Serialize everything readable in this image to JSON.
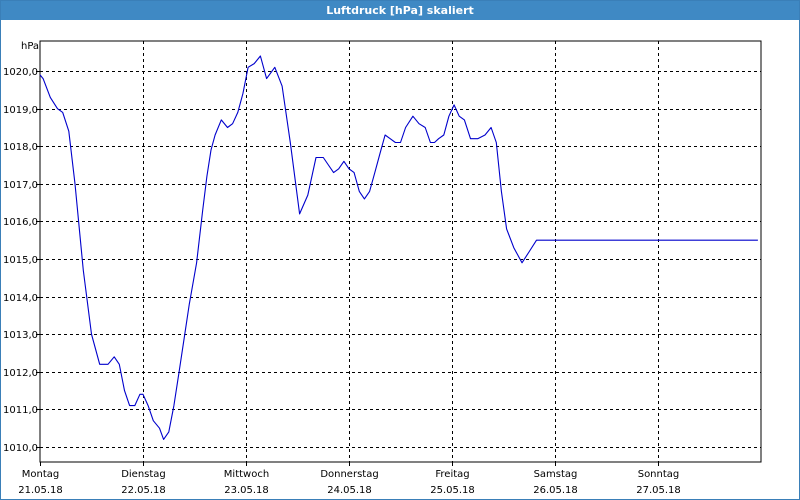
{
  "window": {
    "title": "Luftdruck [hPa] skaliert"
  },
  "chart_data": {
    "type": "line",
    "title": "Luftdruck [hPa] skaliert",
    "ylabel": "hPa",
    "ylim": [
      1009.6,
      1020.8
    ],
    "yticks": [
      1010.0,
      1011.0,
      1012.0,
      1013.0,
      1014.0,
      1015.0,
      1016.0,
      1017.0,
      1018.0,
      1019.0,
      1020.0
    ],
    "ytick_labels": [
      "1010,0",
      "1011,0",
      "1012,0",
      "1013,0",
      "1014,0",
      "1015,0",
      "1016,0",
      "1017,0",
      "1018,0",
      "1019,0",
      "1020,0"
    ],
    "xlim": [
      0,
      7
    ],
    "x_ticks": [
      {
        "day": "Montag",
        "date": "21.05.18"
      },
      {
        "day": "Dienstag",
        "date": "22.05.18"
      },
      {
        "day": "Mittwoch",
        "date": "23.05.18"
      },
      {
        "day": "Donnerstag",
        "date": "24.05.18"
      },
      {
        "day": "Freitag",
        "date": "25.05.18"
      },
      {
        "day": "Samstag",
        "date": "26.05.18"
      },
      {
        "day": "Sonntag",
        "date": "27.05.18"
      }
    ],
    "grid": true,
    "series": [
      {
        "color": "#0000cc",
        "x": [
          0.0,
          0.03,
          0.1,
          0.17,
          0.22,
          0.28,
          0.34,
          0.42,
          0.5,
          0.58,
          0.66,
          0.72,
          0.77,
          0.82,
          0.87,
          0.92,
          0.97,
          1.0,
          1.05,
          1.1,
          1.16,
          1.2,
          1.25,
          1.3,
          1.35,
          1.4,
          1.45,
          1.52,
          1.58,
          1.62,
          1.66,
          1.7,
          1.76,
          1.82,
          1.87,
          1.92,
          1.97,
          2.02,
          2.08,
          2.14,
          2.2,
          2.28,
          2.35,
          2.43,
          2.52,
          2.6,
          2.68,
          2.75,
          2.8,
          2.85,
          2.9,
          2.95,
          3.0,
          3.05,
          3.1,
          3.15,
          3.2,
          3.25,
          3.3,
          3.35,
          3.4,
          3.45,
          3.5,
          3.55,
          3.62,
          3.68,
          3.74,
          3.79,
          3.83,
          3.87,
          3.92,
          3.97,
          4.02,
          4.07,
          4.12,
          4.18,
          4.25,
          4.32,
          4.38,
          4.43,
          4.48,
          4.53,
          4.6,
          4.68,
          4.75,
          4.82,
          4.88,
          4.94,
          5.0,
          5.05,
          5.1,
          5.16,
          5.22,
          5.28,
          5.33,
          5.38,
          5.43,
          5.48,
          5.53,
          5.6,
          5.66,
          5.72,
          5.78,
          5.85,
          5.92,
          5.98,
          6.03,
          6.06,
          6.1,
          6.15,
          6.18,
          6.22,
          6.27,
          6.32,
          6.37,
          6.42,
          6.47,
          6.52,
          6.57,
          6.62,
          6.67,
          6.72,
          6.77,
          6.82,
          6.87,
          6.92,
          6.97
        ],
        "y": [
          1019.9,
          1019.8,
          1019.3,
          1019.0,
          1018.9,
          1018.4,
          1017.0,
          1014.7,
          1013.0,
          1012.2,
          1012.2,
          1012.4,
          1012.2,
          1011.5,
          1011.1,
          1011.1,
          1011.4,
          1011.4,
          1011.1,
          1010.7,
          1010.5,
          1010.2,
          1010.4,
          1011.1,
          1012.0,
          1012.9,
          1013.8,
          1014.9,
          1016.3,
          1017.2,
          1017.9,
          1018.3,
          1018.7,
          1018.5,
          1018.6,
          1018.9,
          1019.4,
          1020.1,
          1020.2,
          1020.4,
          1019.8,
          1020.1,
          1019.6,
          1018.1,
          1016.2,
          1016.7,
          1017.7,
          1017.7,
          1017.5,
          1017.3,
          1017.4,
          1017.6,
          1017.4,
          1017.3,
          1016.8,
          1016.6,
          1016.8,
          1017.3,
          1017.8,
          1018.3,
          1018.2,
          1018.1,
          1018.1,
          1018.5,
          1018.8,
          1018.6,
          1018.5,
          1018.1,
          1018.1,
          1018.2,
          1018.3,
          1018.8,
          1019.1,
          1018.8,
          1018.7,
          1018.2,
          1018.2,
          1018.3,
          1018.5,
          1018.1,
          1016.8,
          1015.8,
          1015.3,
          1014.9,
          1015.2,
          1015.5,
          1015.5,
          1015.5,
          1015.5,
          1015.5,
          1015.5,
          1015.5,
          1015.5,
          1015.5,
          1015.5,
          1015.5,
          1015.5,
          1015.5,
          1015.5,
          1015.5,
          1015.5,
          1015.5,
          1015.5,
          1015.5,
          1015.5,
          1015.5,
          1015.5,
          1015.5,
          1015.5,
          1015.5,
          1015.5,
          1015.5,
          1015.5,
          1015.5,
          1015.5,
          1015.5,
          1015.5,
          1015.5,
          1015.5,
          1015.5,
          1015.5,
          1015.5,
          1015.5,
          1015.5,
          1015.5,
          1015.5,
          1015.5
        ]
      }
    ]
  }
}
